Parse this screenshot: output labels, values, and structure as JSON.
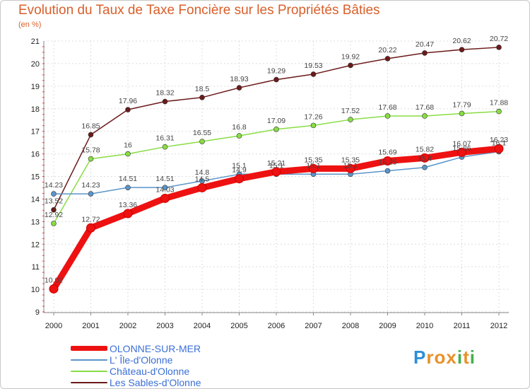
{
  "chart_data": {
    "type": "line",
    "title": "Evolution du Taux de Taxe Foncière sur les Propriétés Bâties",
    "ylabel": "(en %)",
    "xlabel": "",
    "x": [
      "2000",
      "2001",
      "2002",
      "2003",
      "2004",
      "2005",
      "2006",
      "2007",
      "2008",
      "2009",
      "2010",
      "2011",
      "2012"
    ],
    "ylim": [
      9,
      21
    ],
    "yticks": [
      9,
      10,
      11,
      12,
      13,
      14,
      15,
      16,
      17,
      18,
      19,
      20,
      21
    ],
    "series": [
      {
        "name": "OLONNE-SUR-MER",
        "color": "#ee1111",
        "values": [
          10.02,
          12.72,
          13.36,
          14.03,
          14.5,
          14.9,
          15.21,
          15.35,
          15.35,
          15.69,
          15.82,
          16.07,
          16.23
        ],
        "labels": [
          "10.02",
          "12.72",
          "13.36",
          "14.03",
          "14.5",
          "14.9",
          "15.21",
          "15.35",
          "15.35",
          "15.69",
          "15.82",
          "16.07",
          "16.23"
        ]
      },
      {
        "name": "L' Île-d'Olonne",
        "color": "#5b95c9",
        "values": [
          14.23,
          14.23,
          14.51,
          14.51,
          14.8,
          15.1,
          15.1,
          15.1,
          15.1,
          15.25,
          15.4,
          15.86,
          16.1
        ],
        "labels": [
          "14.23",
          "14.23",
          "14.51",
          "14.51",
          "14.8",
          "15.1",
          "15.1",
          "15.1",
          "15.1",
          "15.25",
          "15.4",
          "15.86",
          "16.1"
        ]
      },
      {
        "name": "Château-d'Olonne",
        "color": "#88dd44",
        "values": [
          12.92,
          15.78,
          16,
          16.31,
          16.55,
          16.8,
          17.09,
          17.26,
          17.52,
          17.68,
          17.68,
          17.79,
          17.88
        ],
        "labels": [
          "12.92",
          "15.78",
          "16",
          "16.31",
          "16.55",
          "16.8",
          "17.09",
          "17.26",
          "17.52",
          "17.68",
          "17.68",
          "17.79",
          "17.88"
        ]
      },
      {
        "name": "Les Sables-d'Olonne",
        "color": "#6b1a1a",
        "values": [
          13.52,
          16.85,
          17.96,
          18.32,
          18.5,
          18.93,
          19.29,
          19.53,
          19.92,
          20.22,
          20.47,
          20.62,
          20.72
        ],
        "labels": [
          "13.52",
          "16.85",
          "17.96",
          "18.32",
          "18.5",
          "18.93",
          "19.29",
          "19.53",
          "19.92",
          "20.22",
          "20.47",
          "20.62",
          "20.72"
        ]
      }
    ],
    "legend": [
      {
        "label": "OLONNE-SUR-MER",
        "color": "#ee1111",
        "text_color": "#3b6fd6"
      },
      {
        "label": "L' Île-d'Olonne",
        "color": "#5b95c9",
        "text_color": "#3b6fd6"
      },
      {
        "label": "Château-d'Olonne",
        "color": "#88dd44",
        "text_color": "#3b6fd6"
      },
      {
        "label": "Les Sables-d'Olonne",
        "color": "#6b1a1a",
        "text_color": "#3b6fd6"
      }
    ],
    "grid": true,
    "legend_position": "bottom-left"
  },
  "logo": {
    "letters": [
      "P",
      "r",
      "o",
      "x",
      "i",
      "t",
      "i"
    ],
    "colors": [
      "#2d8fd8",
      "#e8912a",
      "#e8912a",
      "#e8912a",
      "#44b04a",
      "#e8912a",
      "#44b04a"
    ]
  }
}
